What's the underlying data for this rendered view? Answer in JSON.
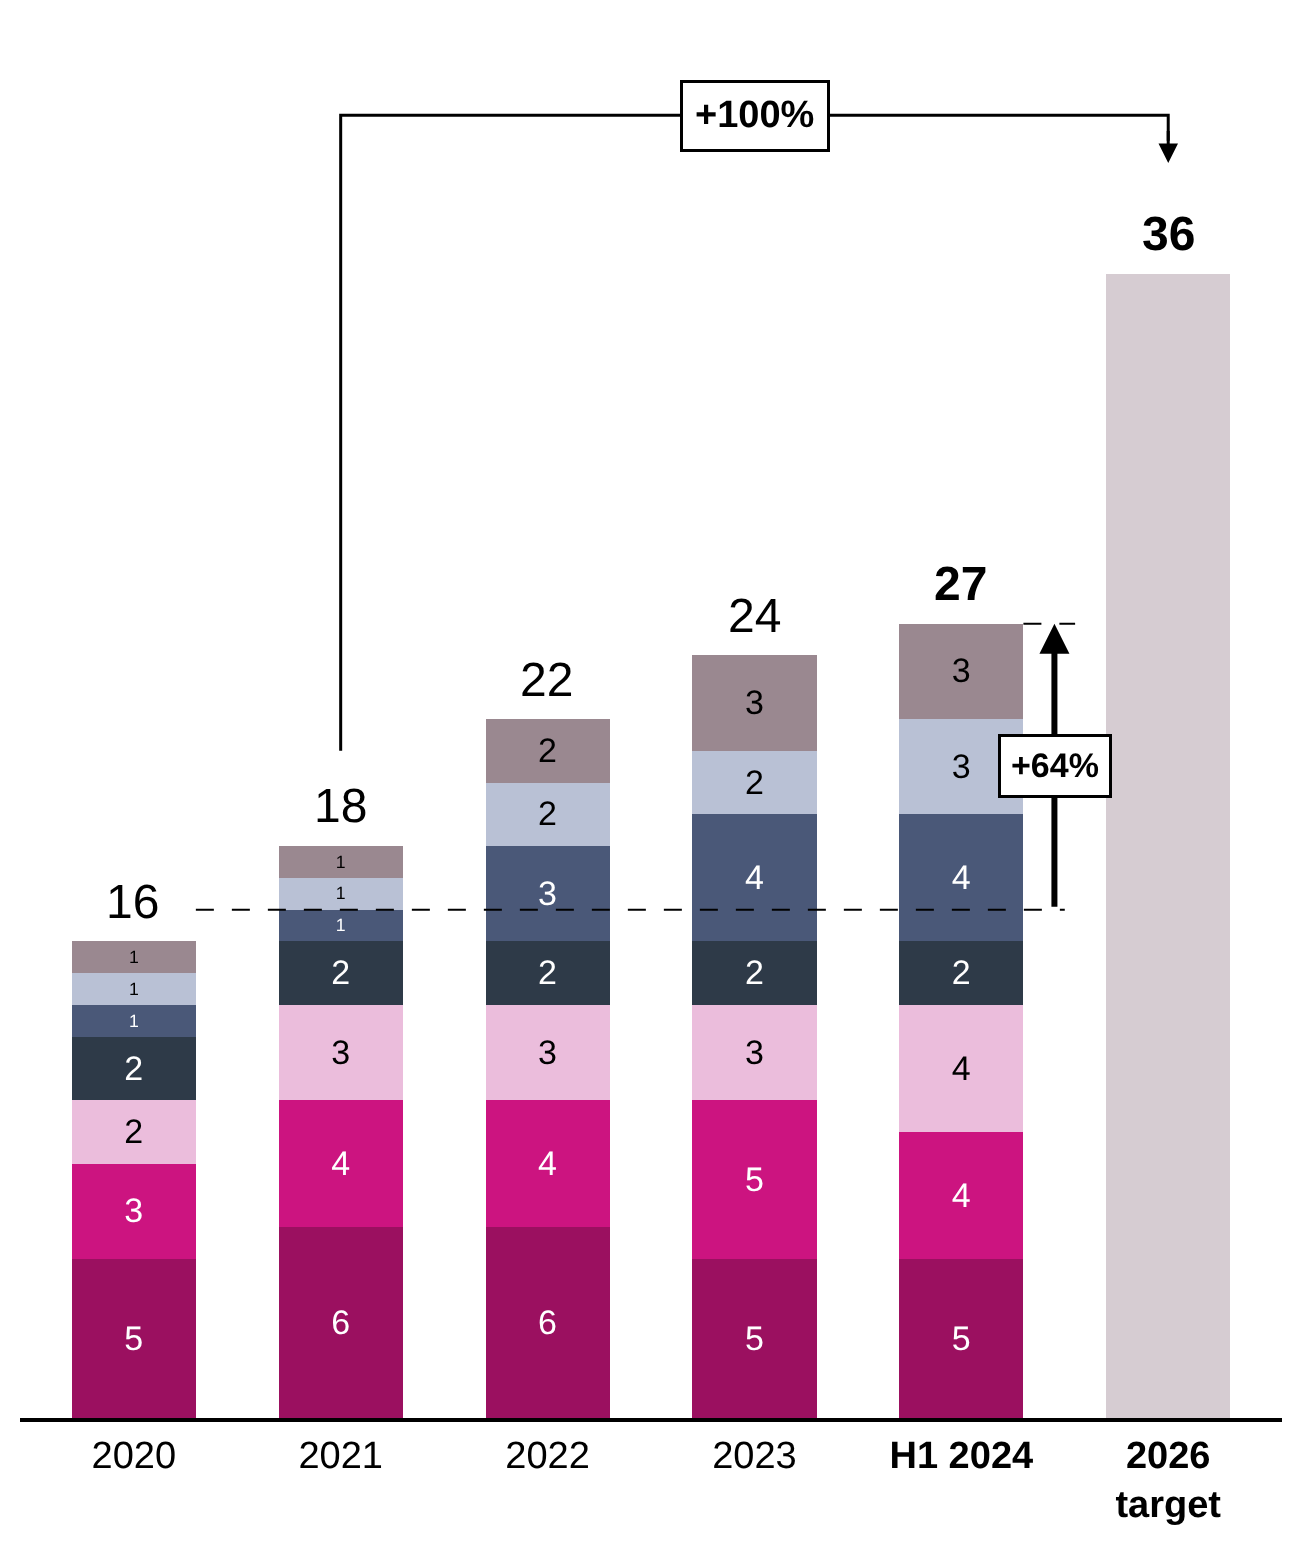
{
  "chart_data": {
    "type": "bar",
    "stacked": true,
    "categories": [
      "2020",
      "2021",
      "2022",
      "2023",
      "H1 2024",
      "2026\ntarget"
    ],
    "series": [
      {
        "color": "#9b1060",
        "values": [
          5,
          6,
          6,
          5,
          5,
          null
        ],
        "value_labels": [
          "5",
          "6",
          "6",
          "5",
          "5",
          null
        ]
      },
      {
        "color": "#cc1480",
        "values": [
          3,
          4,
          4,
          5,
          4,
          null
        ],
        "value_labels": [
          "3",
          "4",
          "4",
          "5",
          "4",
          null
        ]
      },
      {
        "color": "#ebbddc",
        "values": [
          2,
          3,
          3,
          3,
          4,
          null
        ],
        "value_labels": [
          "2",
          "3",
          "3",
          "3",
          "4",
          null
        ]
      },
      {
        "color": "#2e3a48",
        "values": [
          2,
          2,
          2,
          2,
          2,
          null
        ],
        "value_labels": [
          "2",
          "2",
          "2",
          "2",
          "2",
          null
        ]
      },
      {
        "color": "#4a5878",
        "values": [
          1,
          1,
          3,
          4,
          4,
          null
        ],
        "value_labels": [
          "1",
          "1",
          "3",
          "4",
          "4",
          null
        ]
      },
      {
        "color": "#b9c1d5",
        "values": [
          1,
          1,
          2,
          2,
          3,
          null
        ],
        "value_labels": [
          "1",
          "1",
          "2",
          "2",
          "3",
          null
        ]
      },
      {
        "color": "#9a8890",
        "values": [
          1,
          1,
          2,
          3,
          3,
          null
        ],
        "value_labels": [
          "1",
          "1",
          "2",
          "3",
          "3",
          null
        ]
      },
      {
        "color": "#d6ccd2",
        "values": [
          null,
          null,
          null,
          null,
          null,
          36
        ]
      }
    ],
    "totals": [
      "16",
      "18",
      "22",
      "24",
      "27",
      "36"
    ],
    "tick_labels": "x",
    "ref_lines": [
      {
        "axis": "y",
        "value": 16,
        "line_style": "dashed",
        "color": "#000000"
      }
    ],
    "annotations": [
      "+100%",
      "+64%"
    ]
  }
}
